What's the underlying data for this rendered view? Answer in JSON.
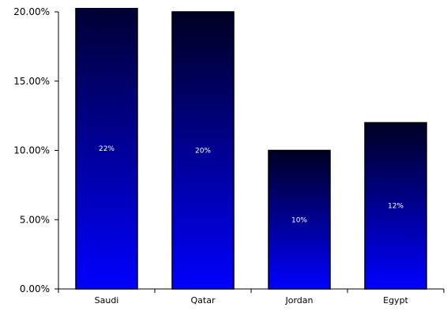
{
  "chart_data": {
    "type": "bar",
    "categories": [
      "Saudi",
      "Qatar",
      "Jordan",
      "Egypt"
    ],
    "values": [
      22,
      20,
      10,
      12
    ],
    "data_labels": [
      "22%",
      "20%",
      "10%",
      "12%"
    ],
    "y_ticks": [
      0,
      5,
      10,
      15,
      20
    ],
    "y_tick_labels": [
      "0.00%",
      "5.00%",
      "10.00%",
      "15.00%",
      "20.00%"
    ],
    "ylim": [
      0,
      20
    ],
    "grid": false,
    "legend": "none",
    "bar_gradient": [
      "#000022",
      "#0000ff"
    ],
    "bar_outline": "#000000",
    "axis_color": "#000000",
    "label_color": "#ffffff"
  }
}
